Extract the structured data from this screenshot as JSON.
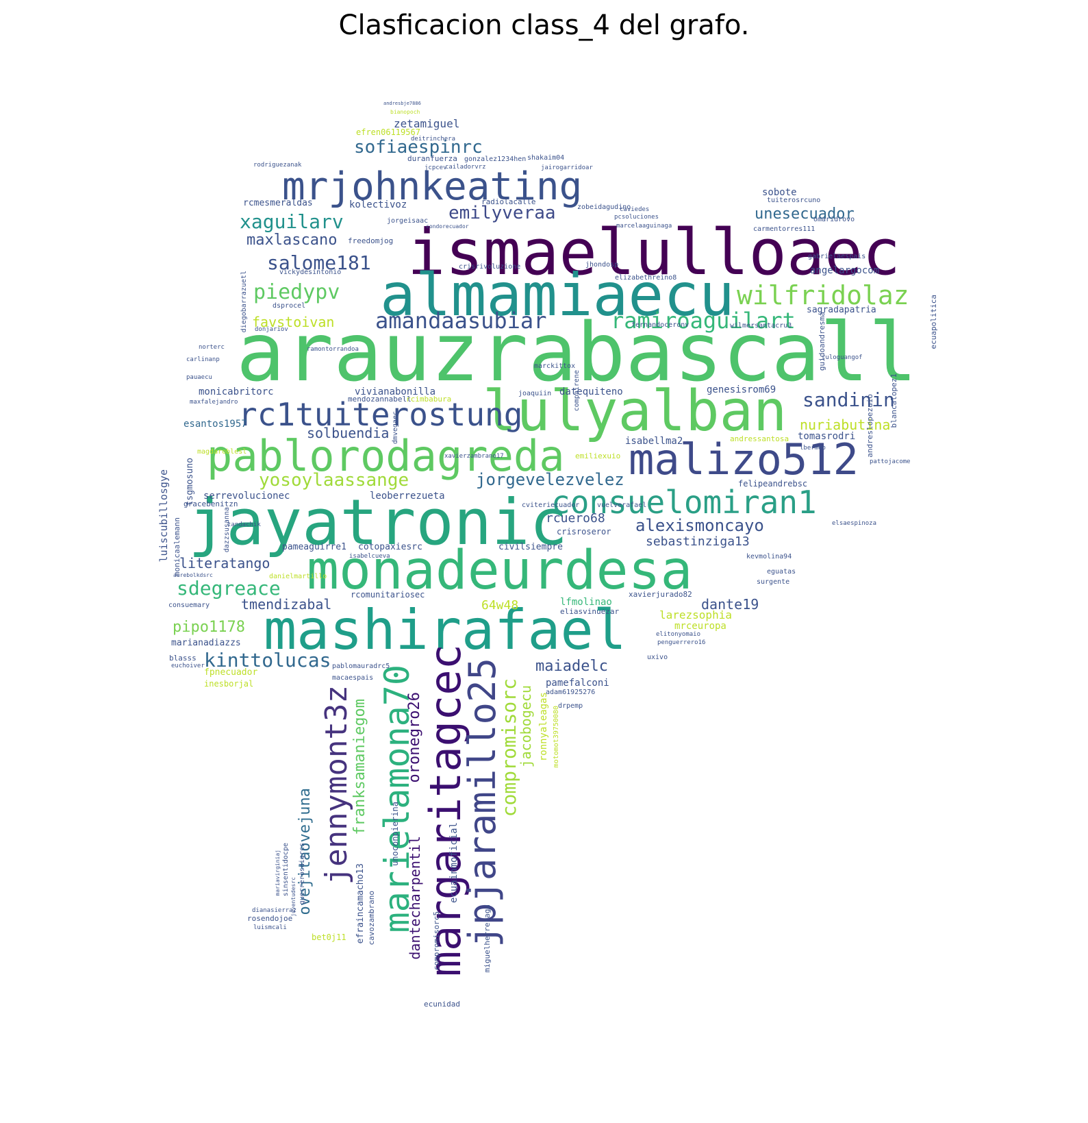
{
  "title": "Clasficacion class_4 del grafo.",
  "palette": {
    "purple": "#440154",
    "indigo": "#3b528b",
    "blue": "#31688e",
    "teal": "#21918c",
    "green": "#35b779",
    "lime": "#5ec962",
    "yellowgreen": "#b5de2b",
    "yellow": "#fde725"
  },
  "words": [
    {
      "text": "arauzrabascall",
      "color": "#4ec36b"
    },
    {
      "text": "ismaelulloaec",
      "color": "#440154"
    },
    {
      "text": "almamiaecu",
      "color": "#21918c"
    },
    {
      "text": "jayatronic",
      "color": "#27a57f"
    },
    {
      "text": "monadeurdesa",
      "color": "#35b779"
    },
    {
      "text": "mashirafael",
      "color": "#1f9e89"
    },
    {
      "text": "lulyalban",
      "color": "#5ec962"
    },
    {
      "text": "pablorodagreda",
      "color": "#5ec962"
    },
    {
      "text": "mrjohnkeating",
      "color": "#3b528b"
    },
    {
      "text": "malizo512",
      "color": "#3e4a89"
    },
    {
      "text": "consuelomiran1",
      "color": "#2a9f86"
    },
    {
      "text": "rc1tuiterostung",
      "color": "#3b528b"
    },
    {
      "text": "margaritagcec",
      "color": "#3b0f70"
    },
    {
      "text": "jpjaramillo25",
      "color": "#404688"
    },
    {
      "text": "marielamona70",
      "color": "#2cb17e"
    },
    {
      "text": "jennymont3z",
      "color": "#46337e"
    },
    {
      "text": "wilfridolaz",
      "color": "#7ad151"
    },
    {
      "text": "amandaasubiar",
      "color": "#3b528b"
    },
    {
      "text": "ramiroaguilart",
      "color": "#35b779"
    },
    {
      "text": "sdegreace",
      "color": "#35b779"
    },
    {
      "text": "kinttolucas",
      "color": "#31688e"
    },
    {
      "text": "emilyveraa",
      "color": "#3e4a89"
    },
    {
      "text": "xaguilarv",
      "color": "#21918c"
    },
    {
      "text": "sofiaespinrc",
      "color": "#31688e"
    },
    {
      "text": "piedypv",
      "color": "#5ec962"
    },
    {
      "text": "salome181",
      "color": "#3b528b"
    },
    {
      "text": "maxlascano",
      "color": "#3b528b"
    },
    {
      "text": "yosoylaassange",
      "color": "#a0da39"
    },
    {
      "text": "jorgevelezvelez",
      "color": "#31688e"
    },
    {
      "text": "sandinin",
      "color": "#3b528b"
    },
    {
      "text": "alexismoncayo",
      "color": "#3b528b"
    },
    {
      "text": "compromisorc",
      "color": "#a0da39"
    },
    {
      "text": "franksamaniegom",
      "color": "#5ec962"
    },
    {
      "text": "oronegro26",
      "color": "#3b0f70"
    },
    {
      "text": "ovejitaovejuna",
      "color": "#2f6c8e"
    },
    {
      "text": "dantecharpentil",
      "color": "#3b0f70"
    },
    {
      "text": "jacobogecu",
      "color": "#a0da39"
    },
    {
      "text": "unesecuador",
      "color": "#31688e"
    },
    {
      "text": "nuriabutina",
      "color": "#bddf26"
    },
    {
      "text": "solbuendia",
      "color": "#3b528b"
    },
    {
      "text": "favstoivan",
      "color": "#bddf26"
    },
    {
      "text": "maiadelc",
      "color": "#3b528b"
    },
    {
      "text": "tmendizabal",
      "color": "#3b528b"
    },
    {
      "text": "literatango",
      "color": "#3b528b"
    },
    {
      "text": "pipo1178",
      "color": "#7ad151"
    },
    {
      "text": "dante19",
      "color": "#3b528b"
    },
    {
      "text": "rcuero68",
      "color": "#3b528b"
    },
    {
      "text": "sebastinziga13",
      "color": "#3b528b"
    },
    {
      "text": "64w48",
      "color": "#bddf26"
    },
    {
      "text": "zetamiguel",
      "color": "#3b528b"
    },
    {
      "text": "larezsophia",
      "color": "#bddf26"
    },
    {
      "text": "esantos1957",
      "color": "#31688e"
    },
    {
      "text": "monicabritorc",
      "color": "#3b528b"
    },
    {
      "text": "vivianabonilla",
      "color": "#3b528b"
    },
    {
      "text": "genesisrom69",
      "color": "#3b528b"
    },
    {
      "text": "serrevolucionec",
      "color": "#3b528b"
    },
    {
      "text": "leoberrezueta",
      "color": "#3b528b"
    },
    {
      "text": "lfmolinao",
      "color": "#35b779"
    },
    {
      "text": "marianadiazzs",
      "color": "#3b528b"
    },
    {
      "text": "kolectivoz",
      "color": "#3b528b"
    },
    {
      "text": "rcmesmeraldas",
      "color": "#3b528b"
    },
    {
      "text": "luiscubillosgye",
      "color": "#3b528b"
    },
    {
      "text": "angelargocom",
      "color": "#3b528b"
    },
    {
      "text": "pamefalconi",
      "color": "#3b528b"
    },
    {
      "text": "isabellma2",
      "color": "#3b528b"
    },
    {
      "text": "ronnyaleagas",
      "color": "#bddf26"
    },
    {
      "text": "sagradapatria",
      "color": "#3b528b"
    },
    {
      "text": "sobote",
      "color": "#3b528b"
    },
    {
      "text": "tomasrodri",
      "color": "#3b528b"
    },
    {
      "text": "tsgmosuno",
      "color": "#3b528b"
    },
    {
      "text": "datequiteno",
      "color": "#3b528b"
    },
    {
      "text": "pameaguirre1",
      "color": "#3b528b"
    },
    {
      "text": "cotopaxiesrc",
      "color": "#3b528b"
    },
    {
      "text": "civilsiempre",
      "color": "#3b528b"
    },
    {
      "text": "crisroseror",
      "color": "#3b528b"
    },
    {
      "text": "ecuainmoficial",
      "color": "#3b528b"
    },
    {
      "text": "mrceuropa",
      "color": "#bddf26"
    },
    {
      "text": "efraincamacho13",
      "color": "#3b528b"
    },
    {
      "text": "unoconpierina",
      "color": "#3b528b"
    },
    {
      "text": "cavozambrano",
      "color": "#3b528b"
    },
    {
      "text": "miguelherreragu",
      "color": "#3b528b"
    },
    {
      "text": "compromisorc5",
      "color": "#3b528b"
    },
    {
      "text": "sinsentidocpe",
      "color": "#3b528b"
    },
    {
      "text": "guerrerosdigrcs",
      "color": "#3b528b"
    },
    {
      "text": "rosendojoe",
      "color": "#3b528b"
    },
    {
      "text": "bet0j11",
      "color": "#bddf26"
    },
    {
      "text": "ecunidad",
      "color": "#3b528b"
    },
    {
      "text": "fpnecuador",
      "color": "#bddf26"
    },
    {
      "text": "inesborjal",
      "color": "#bddf26"
    },
    {
      "text": "blasss",
      "color": "#3b528b"
    },
    {
      "text": "monicaalemann",
      "color": "#3b528b"
    },
    {
      "text": "rcomunitariosec",
      "color": "#3b528b"
    },
    {
      "text": "eliasvinuezar",
      "color": "#3b528b"
    },
    {
      "text": "xavierjurado82",
      "color": "#3b528b"
    },
    {
      "text": "felipeandrebsc",
      "color": "#3b528b"
    },
    {
      "text": "blancalopez1",
      "color": "#3b528b"
    },
    {
      "text": "ecuapolitica",
      "color": "#3b528b"
    },
    {
      "text": "guidoandresma",
      "color": "#3b528b"
    },
    {
      "text": "andreslopezuio",
      "color": "#3b528b"
    },
    {
      "text": "rcimbabura",
      "color": "#bddf26"
    },
    {
      "text": "mendozannabell",
      "color": "#3b528b"
    },
    {
      "text": "andressantosa",
      "color": "#bddf26"
    },
    {
      "text": "adam61925276",
      "color": "#3b528b"
    },
    {
      "text": "drpemp",
      "color": "#3b528b"
    },
    {
      "text": "motomot39750080",
      "color": "#bddf26"
    },
    {
      "text": "emiliexuio",
      "color": "#bddf26"
    },
    {
      "text": "freedomjog",
      "color": "#3b528b"
    },
    {
      "text": "radiolacalle",
      "color": "#3b528b"
    },
    {
      "text": "zobeidagudino",
      "color": "#3b528b"
    },
    {
      "text": "shakaim04",
      "color": "#3b528b"
    },
    {
      "text": "gonzalez1234hen",
      "color": "#3b528b"
    },
    {
      "text": "duranfuerza",
      "color": "#3b528b"
    },
    {
      "text": "efren06119567",
      "color": "#bddf26"
    },
    {
      "text": "vickydesintonio",
      "color": "#3b528b"
    },
    {
      "text": "crisrivoluzione",
      "color": "#3b528b"
    },
    {
      "text": "jorgeisaac",
      "color": "#3b528b"
    },
    {
      "text": "omaridrovo",
      "color": "#3b528b"
    },
    {
      "text": "gabrielaespais",
      "color": "#3b528b"
    },
    {
      "text": "elizabethreino8",
      "color": "#3b528b"
    },
    {
      "text": "jhondosp",
      "color": "#3b528b"
    },
    {
      "text": "fernandoceronv",
      "color": "#3b528b"
    },
    {
      "text": "wilmersantacru3",
      "color": "#3b528b"
    },
    {
      "text": "dsprocel",
      "color": "#3b528b"
    },
    {
      "text": "diegobarrazuetl",
      "color": "#3b528b"
    },
    {
      "text": "gracebenitzn",
      "color": "#3b528b"
    },
    {
      "text": "magdaroblesl",
      "color": "#bddf26"
    },
    {
      "text": "dazzsusanna",
      "color": "#3b528b"
    },
    {
      "text": "consuemary",
      "color": "#3b528b"
    },
    {
      "text": "eguatas",
      "color": "#3b528b"
    },
    {
      "text": "surgente",
      "color": "#3b528b"
    },
    {
      "text": "kevmolina94",
      "color": "#3b528b"
    },
    {
      "text": "dmvegaec",
      "color": "#3b528b"
    },
    {
      "text": "marckittox",
      "color": "#3b528b"
    },
    {
      "text": "joaquiin",
      "color": "#3b528b"
    },
    {
      "text": "compairene",
      "color": "#3b528b"
    },
    {
      "text": "cviteriecuador",
      "color": "#3b528b"
    },
    {
      "text": "vuelverafael",
      "color": "#3b528b"
    },
    {
      "text": "tandachik",
      "color": "#3b528b"
    },
    {
      "text": "danielmartillo",
      "color": "#bddf26"
    },
    {
      "text": "xavierzambrano17",
      "color": "#3b528b"
    },
    {
      "text": "pablomauradrc5",
      "color": "#3b528b"
    },
    {
      "text": "macaespais",
      "color": "#3b528b"
    },
    {
      "text": "elsaespinoza",
      "color": "#3b528b"
    },
    {
      "text": "pattojacome",
      "color": "#3b528b"
    },
    {
      "text": "tuiterosrcuno",
      "color": "#3b528b"
    },
    {
      "text": "carmentorres111",
      "color": "#3b528b"
    },
    {
      "text": "marcelaaguinaga",
      "color": "#3b528b"
    },
    {
      "text": "pcsoluciones",
      "color": "#3b528b"
    },
    {
      "text": "caviedes",
      "color": "#3b528b"
    },
    {
      "text": "rodriguezanak",
      "color": "#3b528b"
    },
    {
      "text": "cailadorvrz",
      "color": "#3b528b"
    },
    {
      "text": "jairogarridoar",
      "color": "#3b528b"
    },
    {
      "text": "jcpcev",
      "color": "#3b528b"
    },
    {
      "text": "deitrinchera",
      "color": "#3b528b"
    },
    {
      "text": "juventudesrc",
      "color": "#3b528b"
    },
    {
      "text": "mariavirginiaj",
      "color": "#3b528b"
    },
    {
      "text": "pauaecu",
      "color": "#3b528b"
    },
    {
      "text": "carlinanp",
      "color": "#3b528b"
    },
    {
      "text": "norterc",
      "color": "#3b528b"
    },
    {
      "text": "maxfalejandro",
      "color": "#3b528b"
    },
    {
      "text": "ramontorrandoa",
      "color": "#3b528b"
    },
    {
      "text": "donjariov",
      "color": "#3b528b"
    },
    {
      "text": "isabelcueva",
      "color": "#3b528b"
    },
    {
      "text": "aurebolkdsrc",
      "color": "#3b528b"
    },
    {
      "text": "euchoiver",
      "color": "#3b528b"
    },
    {
      "text": "elitonyomaio",
      "color": "#3b528b"
    },
    {
      "text": "penguerrero16",
      "color": "#3b528b"
    },
    {
      "text": "uxivo",
      "color": "#3b528b"
    },
    {
      "text": "ruloguangof",
      "color": "#3b528b"
    },
    {
      "text": "dianasierraz",
      "color": "#3b528b"
    },
    {
      "text": "luismcali",
      "color": "#3b528b"
    },
    {
      "text": "lbermeo",
      "color": "#3b528b"
    },
    {
      "text": "condorecuador",
      "color": "#3b528b"
    },
    {
      "text": "bianopoch",
      "color": "#bddf26"
    },
    {
      "text": "andresbje7886",
      "color": "#3b528b"
    }
  ]
}
